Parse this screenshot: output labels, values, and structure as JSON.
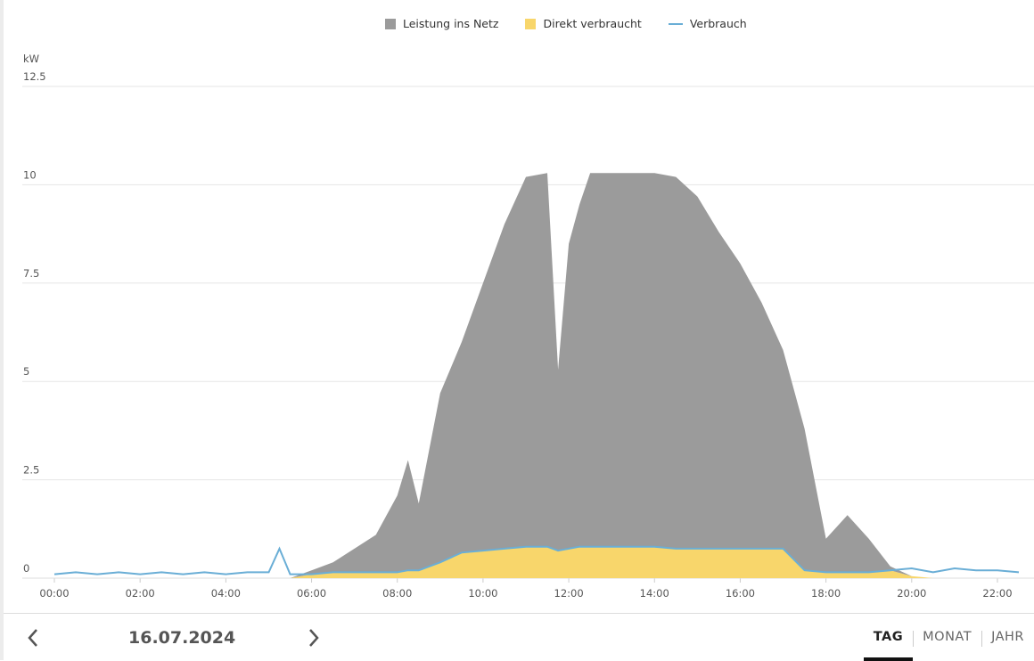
{
  "chart_data": {
    "type": "area",
    "y_label": "kW",
    "x": [
      "00:00",
      "00:30",
      "01:00",
      "01:30",
      "02:00",
      "02:30",
      "03:00",
      "03:30",
      "04:00",
      "04:30",
      "05:00",
      "05:15",
      "05:30",
      "06:00",
      "06:30",
      "07:00",
      "07:30",
      "08:00",
      "08:15",
      "08:30",
      "09:00",
      "09:30",
      "10:00",
      "10:30",
      "11:00",
      "11:30",
      "11:45",
      "12:00",
      "12:15",
      "12:30",
      "13:00",
      "13:30",
      "14:00",
      "14:30",
      "15:00",
      "15:30",
      "16:00",
      "16:30",
      "17:00",
      "17:30",
      "18:00",
      "18:30",
      "19:00",
      "19:30",
      "20:00",
      "20:30",
      "21:00",
      "21:30",
      "22:00",
      "22:30"
    ],
    "xlim": [
      "00:00",
      "22:50"
    ],
    "xticks": [
      "00:00",
      "02:00",
      "04:00",
      "06:00",
      "08:00",
      "10:00",
      "12:00",
      "14:00",
      "16:00",
      "18:00",
      "20:00",
      "22:00"
    ],
    "ylim": [
      0,
      12.5
    ],
    "yticks": [
      0,
      2.5,
      5,
      7.5,
      10,
      12.5
    ],
    "grid": true,
    "stacked": true,
    "series": [
      {
        "name": "Leistung ins Netz",
        "type": "area",
        "color": "#9b9b9b",
        "values": [
          0,
          0,
          0,
          0,
          0,
          0,
          0,
          0,
          0,
          0,
          0,
          0,
          0,
          0.1,
          0.25,
          0.6,
          0.95,
          1.95,
          2.8,
          1.7,
          4.3,
          5.35,
          6.8,
          8.25,
          9.4,
          9.5,
          4.6,
          7.75,
          8.7,
          9.5,
          9.5,
          9.5,
          9.5,
          9.45,
          8.95,
          8.05,
          7.25,
          6.25,
          5.05,
          3.6,
          0.85,
          1.45,
          0.85,
          0.1,
          0,
          0,
          0,
          0,
          0,
          0
        ]
      },
      {
        "name": "Direkt verbraucht",
        "type": "area",
        "color": "#f8d66b",
        "values": [
          0,
          0,
          0,
          0,
          0,
          0,
          0,
          0,
          0,
          0,
          0,
          0,
          0,
          0.1,
          0.15,
          0.15,
          0.15,
          0.15,
          0.2,
          0.2,
          0.4,
          0.65,
          0.7,
          0.75,
          0.8,
          0.8,
          0.7,
          0.75,
          0.8,
          0.8,
          0.8,
          0.8,
          0.8,
          0.75,
          0.75,
          0.75,
          0.75,
          0.75,
          0.75,
          0.2,
          0.15,
          0.15,
          0.15,
          0.2,
          0.05,
          0,
          0,
          0,
          0,
          0
        ]
      },
      {
        "name": "Verbrauch",
        "type": "line",
        "color": "#6aaed6",
        "values": [
          0.1,
          0.15,
          0.1,
          0.15,
          0.1,
          0.15,
          0.1,
          0.15,
          0.1,
          0.15,
          0.15,
          0.75,
          0.1,
          0.1,
          0.15,
          0.15,
          0.15,
          0.15,
          0.2,
          0.2,
          0.4,
          0.65,
          0.7,
          0.75,
          0.8,
          0.8,
          0.7,
          0.75,
          0.8,
          0.8,
          0.8,
          0.8,
          0.8,
          0.75,
          0.75,
          0.75,
          0.75,
          0.75,
          0.75,
          0.2,
          0.15,
          0.15,
          0.15,
          0.2,
          0.25,
          0.15,
          0.25,
          0.2,
          0.2,
          0.15
        ]
      }
    ]
  },
  "ui": {
    "date": "16.07.2024",
    "tabs": [
      "TAG",
      "MONAT",
      "JAHR"
    ],
    "active_tab": 0
  }
}
